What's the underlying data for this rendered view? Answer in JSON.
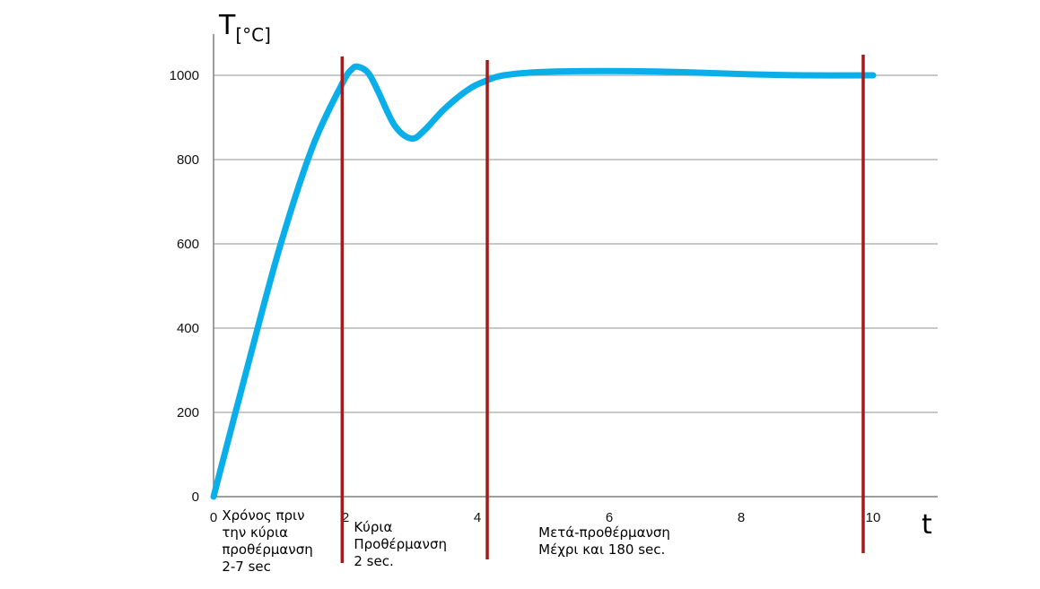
{
  "chart_data": {
    "type": "line",
    "title": "",
    "ylabel": {
      "main": "T",
      "unit": "[°C]"
    },
    "xlabel": "t",
    "xlim": [
      0,
      11
    ],
    "ylim": [
      0,
      1100
    ],
    "xticks": [
      0,
      2,
      4,
      6,
      8,
      10
    ],
    "yticks": [
      0,
      200,
      400,
      600,
      800,
      1000
    ],
    "grid": "horizontal",
    "colors": {
      "line": "#0aaee8",
      "markers": "#a31c1c",
      "grid": "#a6a6a6"
    },
    "series": [
      {
        "x": [
          0,
          0.5,
          1.0,
          1.5,
          1.95,
          2.1,
          2.2,
          2.35,
          2.5,
          2.75,
          3.0,
          3.2,
          3.5,
          3.85,
          4.1,
          4.4,
          5.0,
          6.0,
          7.0,
          8.0,
          9.0,
          10.0
        ],
        "y": [
          0,
          300,
          590,
          830,
          980,
          1015,
          1020,
          1005,
          960,
          880,
          850,
          870,
          920,
          965,
          985,
          1000,
          1008,
          1010,
          1008,
          1003,
          1000,
          1000
        ]
      }
    ],
    "markers": [
      1.95,
      4.15,
      9.85
    ],
    "annotations": [
      {
        "x": 0.1,
        "lines": [
          "Χρόνος πριν",
          "την κύρια",
          "προθέρμανση",
          "2-7 sec"
        ]
      },
      {
        "x": 2.1,
        "lines": [
          "Κύρια",
          "Προθέρμανση",
          "2 sec."
        ]
      },
      {
        "x": 4.9,
        "lines": [
          "Μετά-προθέρμανση",
          "Μέχρι και 180 sec."
        ]
      }
    ]
  }
}
